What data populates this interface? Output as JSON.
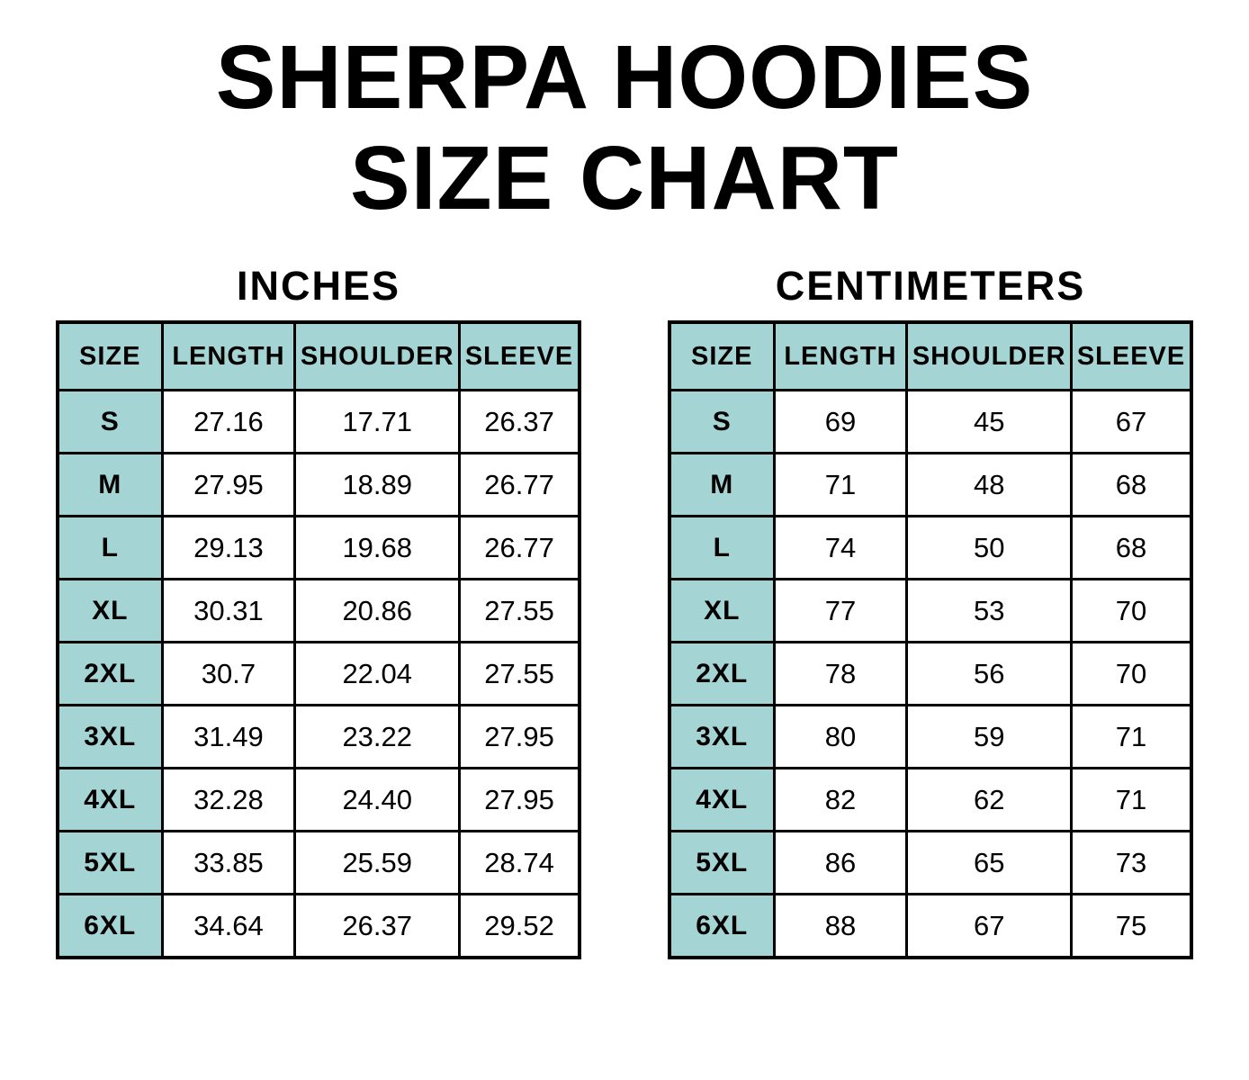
{
  "title": {
    "line1": "SHERPA HOODIES",
    "line2": "SIZE CHART"
  },
  "colors": {
    "header_bg": "#a5d4d5",
    "border": "#000000",
    "text": "#000000",
    "background": "#ffffff"
  },
  "chart_data": [
    {
      "type": "table",
      "title": "INCHES",
      "columns": [
        "SIZE",
        "LENGTH",
        "SHOULDER",
        "SLEEVE"
      ],
      "rows": [
        [
          "S",
          "27.16",
          "17.71",
          "26.37"
        ],
        [
          "M",
          "27.95",
          "18.89",
          "26.77"
        ],
        [
          "L",
          "29.13",
          "19.68",
          "26.77"
        ],
        [
          "XL",
          "30.31",
          "20.86",
          "27.55"
        ],
        [
          "2XL",
          "30.7",
          "22.04",
          "27.55"
        ],
        [
          "3XL",
          "31.49",
          "23.22",
          "27.95"
        ],
        [
          "4XL",
          "32.28",
          "24.40",
          "27.95"
        ],
        [
          "5XL",
          "33.85",
          "25.59",
          "28.74"
        ],
        [
          "6XL",
          "34.64",
          "26.37",
          "29.52"
        ]
      ]
    },
    {
      "type": "table",
      "title": "CENTIMETERS",
      "columns": [
        "SIZE",
        "LENGTH",
        "SHOULDER",
        "SLEEVE"
      ],
      "rows": [
        [
          "S",
          "69",
          "45",
          "67"
        ],
        [
          "M",
          "71",
          "48",
          "68"
        ],
        [
          "L",
          "74",
          "50",
          "68"
        ],
        [
          "XL",
          "77",
          "53",
          "70"
        ],
        [
          "2XL",
          "78",
          "56",
          "70"
        ],
        [
          "3XL",
          "80",
          "59",
          "71"
        ],
        [
          "4XL",
          "82",
          "62",
          "71"
        ],
        [
          "5XL",
          "86",
          "65",
          "73"
        ],
        [
          "6XL",
          "88",
          "67",
          "75"
        ]
      ]
    }
  ]
}
